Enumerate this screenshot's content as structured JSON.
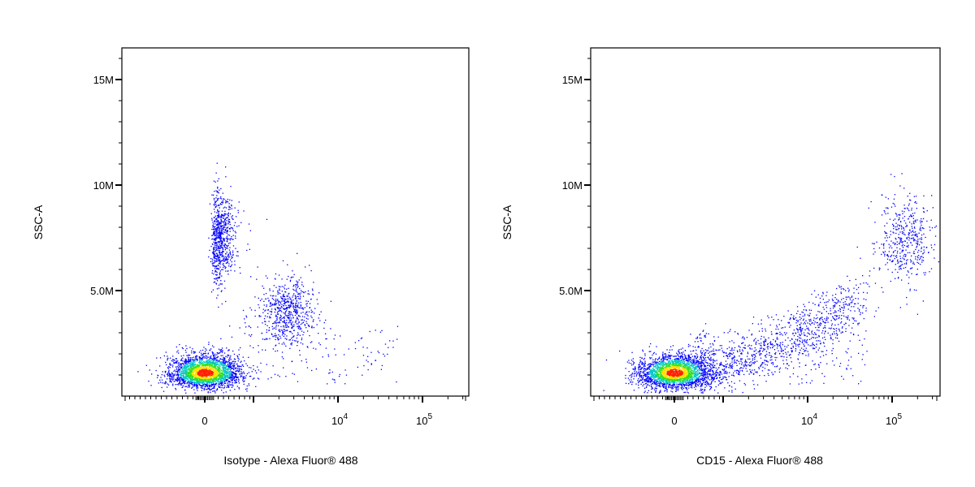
{
  "chart_data": [
    {
      "type": "scatter",
      "subtype": "flow-cytometry-density-dot-plot",
      "xlabel": "Isotype - Alexa Fluor® 488",
      "ylabel": "SSC-A",
      "x_scale": "biexponential",
      "y_scale": "linear",
      "ylim": [
        0,
        16500000
      ],
      "yticks": [
        {
          "value": 15000000,
          "label": "15M"
        },
        {
          "value": 10000000,
          "label": "10M"
        },
        {
          "value": 5000000,
          "label": "5.0M"
        }
      ],
      "xticks": [
        {
          "value": 0,
          "label": "0"
        },
        {
          "value": 10000,
          "label": "10",
          "sup": "4"
        },
        {
          "value": 100000,
          "label": "10",
          "sup": "5"
        }
      ],
      "grid": false,
      "legend": "none",
      "populations": [
        {
          "name": "",
          "x_center": 0,
          "y_center": 1100000,
          "n": 2600,
          "core": true
        },
        {
          "name": "",
          "x_center": 300,
          "y_center": 7500000,
          "n": 750,
          "core": false
        },
        {
          "name": "",
          "x_center": 2500,
          "y_center": 4000000,
          "n": 650,
          "core": false
        }
      ]
    },
    {
      "type": "scatter",
      "subtype": "flow-cytometry-density-dot-plot",
      "xlabel": "CD15 - Alexa Fluor® 488",
      "ylabel": "SSC-A",
      "x_scale": "biexponential",
      "y_scale": "linear",
      "ylim": [
        0,
        16500000
      ],
      "yticks": [
        {
          "value": 15000000,
          "label": "15M"
        },
        {
          "value": 10000000,
          "label": "10M"
        },
        {
          "value": 5000000,
          "label": "5.0M"
        }
      ],
      "xticks": [
        {
          "value": 0,
          "label": "0"
        },
        {
          "value": 10000,
          "label": "10",
          "sup": "4"
        },
        {
          "value": 100000,
          "label": "10",
          "sup": "5"
        }
      ],
      "grid": false,
      "legend": "none",
      "populations": [
        {
          "name": "",
          "x_center": 0,
          "y_center": 1100000,
          "n": 2600,
          "core": true
        },
        {
          "name": "",
          "x_center": 15000,
          "y_center": 4000000,
          "n": 1100,
          "core": false
        },
        {
          "name": "",
          "x_center": 150000,
          "y_center": 7500000,
          "n": 450,
          "core": false
        }
      ]
    }
  ],
  "colors": {
    "density_low": "#0000ff",
    "density_mid": "#00c8c8",
    "density_midhigh": "#30e020",
    "density_high": "#ffe000",
    "density_peak": "#ff2000",
    "axis": "#000000",
    "background": "#ffffff"
  }
}
